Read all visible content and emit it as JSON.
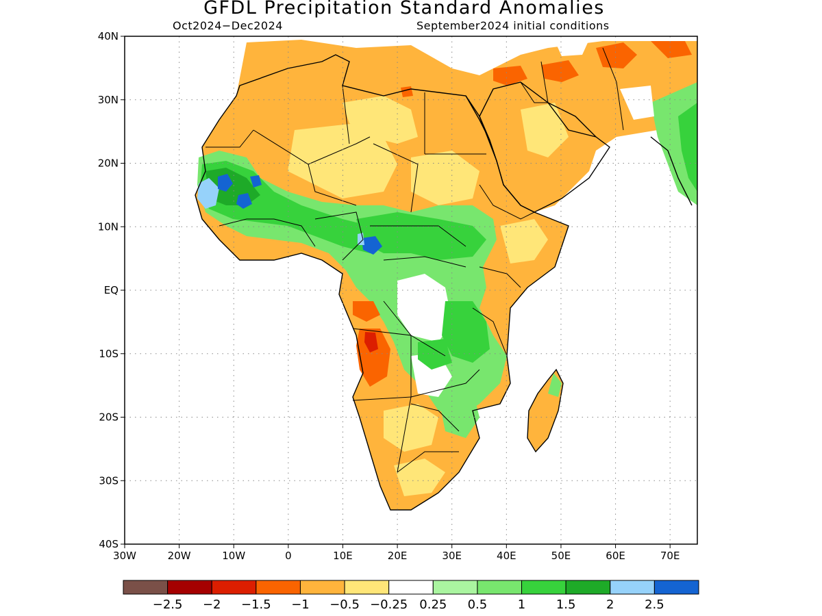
{
  "map": {
    "title": "GFDL Precipitation Standard Anomalies",
    "period": "Oct2024−Dec2024",
    "initial_conditions": "September2024 initial conditions",
    "lat_ticks": [
      "40N",
      "30N",
      "20N",
      "10N",
      "EQ",
      "10S",
      "20S",
      "30S",
      "40S"
    ],
    "lon_ticks": [
      "30W",
      "20W",
      "10W",
      "0",
      "10E",
      "20E",
      "30E",
      "40E",
      "50E",
      "60E",
      "70E"
    ],
    "lon_range": [
      -30,
      75
    ],
    "lat_range": [
      -40,
      40
    ],
    "gridlines": "dotted"
  },
  "colorbar": {
    "colors": [
      "#7a5048",
      "#a50000",
      "#dc1e00",
      "#fa6400",
      "#ffb43c",
      "#ffe678",
      "#ffffff",
      "#aaf5a0",
      "#78e66e",
      "#37d23c",
      "#1eaa28",
      "#96d2fa",
      "#1464d2"
    ],
    "labels": [
      "−2.5",
      "−2",
      "−1.5",
      "−1",
      "−0.5",
      "−0.25",
      "0.25",
      "0.5",
      "1",
      "1.5",
      "2",
      "2.5"
    ]
  },
  "regions": [
    {
      "name": "north-africa-dry",
      "color": "#ffb43c"
    },
    {
      "name": "sahara-light-dry",
      "color": "#ffe678"
    },
    {
      "name": "sahel-wet",
      "color": "#37d23c"
    },
    {
      "name": "west-africa-very-wet",
      "color": "#1464d2"
    },
    {
      "name": "central-africa-wet",
      "color": "#78e66e"
    },
    {
      "name": "east-africa-dry",
      "color": "#ffb43c"
    },
    {
      "name": "southern-africa-dry",
      "color": "#ffb43c"
    },
    {
      "name": "angola-strong-dry",
      "color": "#fa6400"
    },
    {
      "name": "middle-east-dry",
      "color": "#ffb43c"
    },
    {
      "name": "madagascar-dry",
      "color": "#ffb43c"
    }
  ]
}
